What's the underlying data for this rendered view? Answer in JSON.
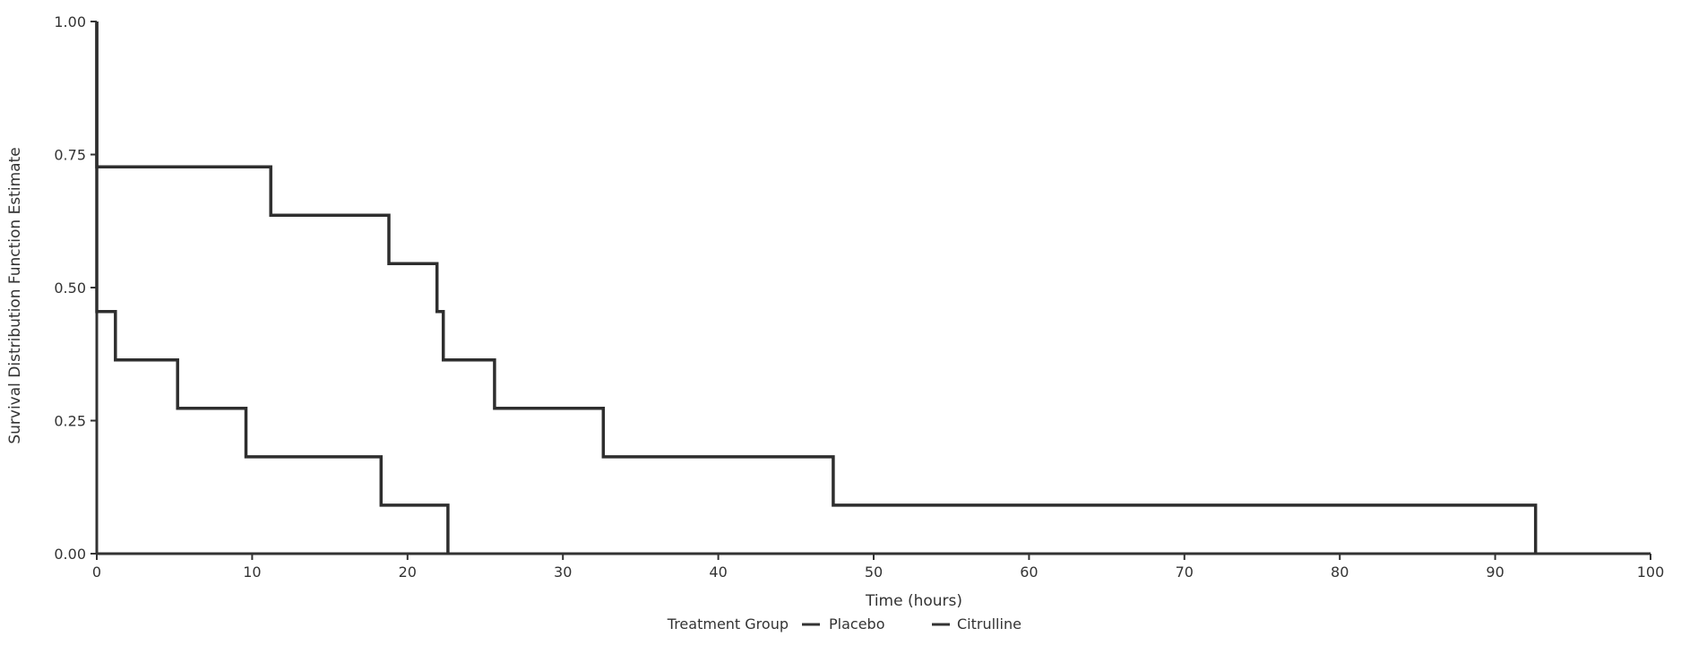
{
  "chart_data": {
    "type": "line",
    "step": true,
    "xlabel": "Time (hours)",
    "ylabel": "Survival Distribution Function Estimate",
    "xlim": [
      0,
      100
    ],
    "ylim": [
      0,
      1
    ],
    "x_ticks": [
      "0",
      "10",
      "20",
      "30",
      "40",
      "50",
      "60",
      "70",
      "80",
      "90",
      "100"
    ],
    "y_ticks": [
      "0.00",
      "0.25",
      "0.50",
      "0.75",
      "1.00"
    ],
    "grid": false,
    "legend": {
      "title": "Treatment Group",
      "position": "bottom"
    },
    "series": [
      {
        "name": "Placebo",
        "steps": [
          [
            0,
            1.0
          ],
          [
            0,
            0.455
          ],
          [
            1.2,
            0.455
          ],
          [
            1.2,
            0.364
          ],
          [
            5.2,
            0.364
          ],
          [
            5.2,
            0.273
          ],
          [
            9.6,
            0.273
          ],
          [
            9.6,
            0.182
          ],
          [
            18.3,
            0.182
          ],
          [
            18.3,
            0.091
          ],
          [
            22.6,
            0.091
          ],
          [
            22.6,
            0.0
          ]
        ]
      },
      {
        "name": "Citrulline",
        "steps": [
          [
            0,
            1.0
          ],
          [
            0,
            0.727
          ],
          [
            11.2,
            0.727
          ],
          [
            11.2,
            0.636
          ],
          [
            18.8,
            0.636
          ],
          [
            18.8,
            0.545
          ],
          [
            21.9,
            0.545
          ],
          [
            21.9,
            0.455
          ],
          [
            22.3,
            0.455
          ],
          [
            22.3,
            0.364
          ],
          [
            25.6,
            0.364
          ],
          [
            25.6,
            0.273
          ],
          [
            32.6,
            0.273
          ],
          [
            32.6,
            0.182
          ],
          [
            47.4,
            0.182
          ],
          [
            47.4,
            0.091
          ],
          [
            92.6,
            0.091
          ],
          [
            92.6,
            0.0
          ]
        ]
      }
    ]
  }
}
